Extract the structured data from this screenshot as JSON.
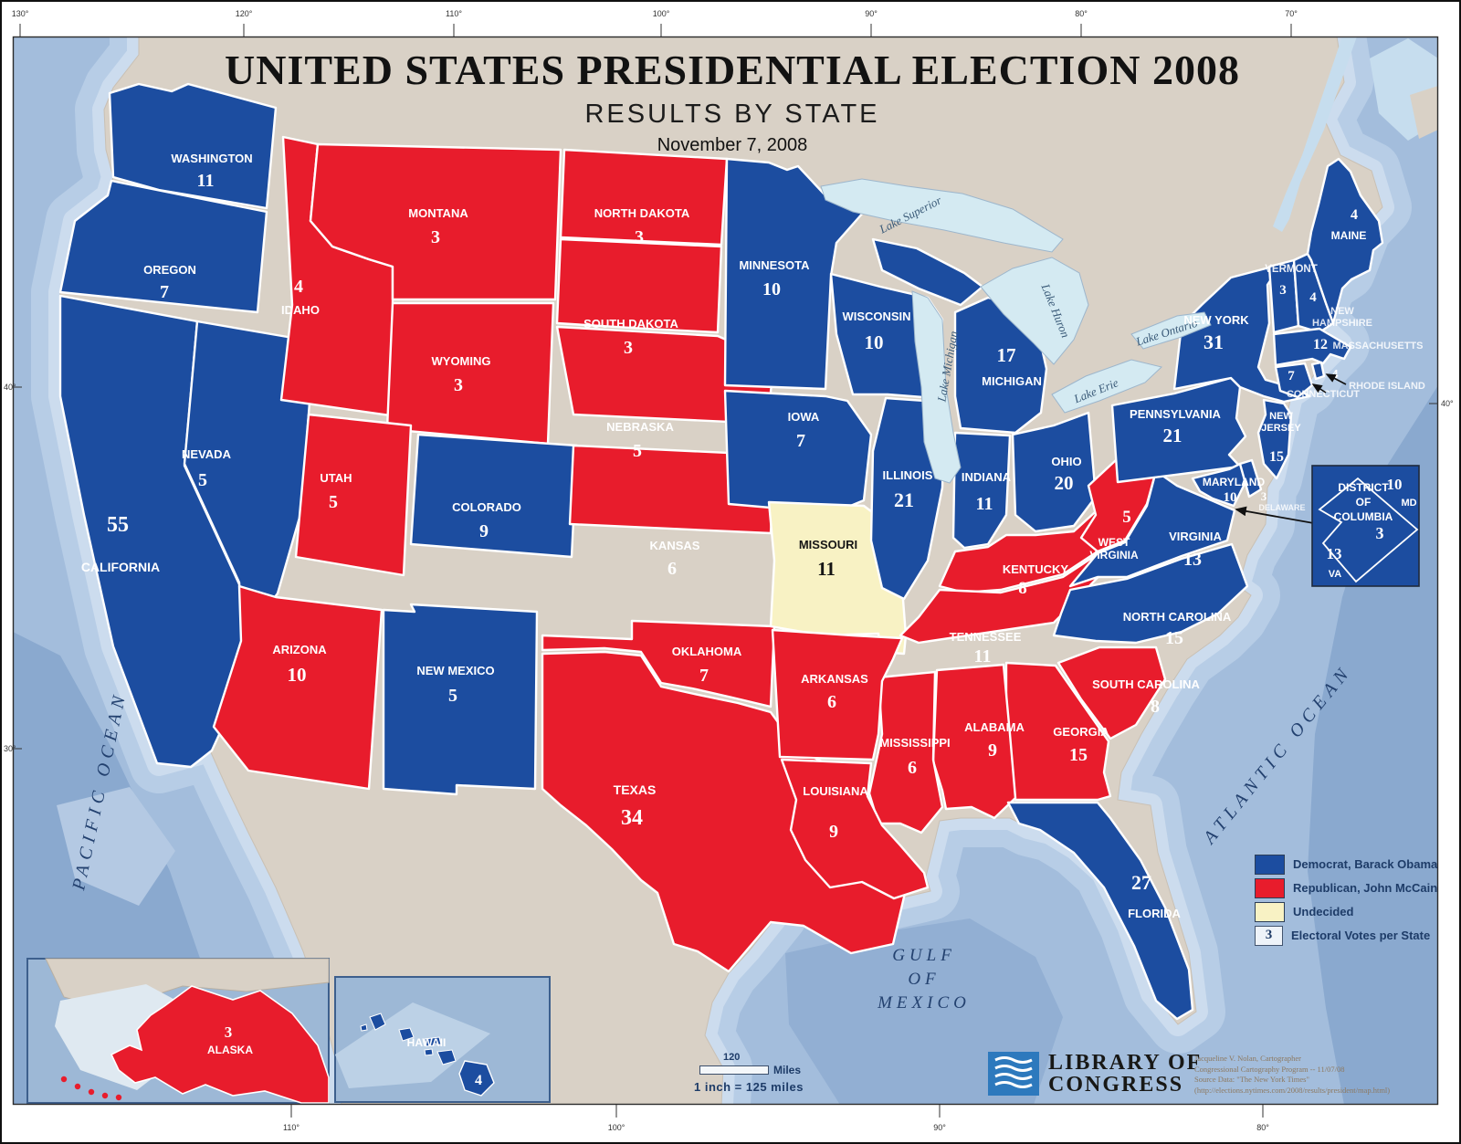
{
  "title": {
    "main": "UNITED STATES PRESIDENTIAL ELECTION 2008",
    "subtitle": "RESULTS BY STATE",
    "date": "November 7, 2008"
  },
  "colors": {
    "dem": "#1c4da0",
    "rep": "#e81c2c",
    "undecided": "#f8f2c4"
  },
  "states": [
    {
      "id": "wa",
      "name": "WASHINGTON",
      "ev": "11",
      "party": "dem"
    },
    {
      "id": "or",
      "name": "OREGON",
      "ev": "7",
      "party": "dem"
    },
    {
      "id": "ca",
      "name": "CALIFORNIA",
      "ev": "55",
      "party": "dem"
    },
    {
      "id": "nv",
      "name": "NEVADA",
      "ev": "5",
      "party": "dem"
    },
    {
      "id": "id",
      "name": "IDAHO",
      "ev": "4",
      "party": "rep"
    },
    {
      "id": "mt",
      "name": "MONTANA",
      "ev": "3",
      "party": "rep"
    },
    {
      "id": "wy",
      "name": "WYOMING",
      "ev": "3",
      "party": "rep"
    },
    {
      "id": "ut",
      "name": "UTAH",
      "ev": "5",
      "party": "rep"
    },
    {
      "id": "co",
      "name": "COLORADO",
      "ev": "9",
      "party": "dem"
    },
    {
      "id": "az",
      "name": "ARIZONA",
      "ev": "10",
      "party": "rep"
    },
    {
      "id": "nm",
      "name": "NEW MEXICO",
      "ev": "5",
      "party": "dem"
    },
    {
      "id": "nd",
      "name": "NORTH DAKOTA",
      "ev": "3",
      "party": "rep"
    },
    {
      "id": "sd",
      "name": "SOUTH DAKOTA",
      "ev": "3",
      "party": "rep"
    },
    {
      "id": "ne",
      "name": "NEBRASKA",
      "ev": "5",
      "party": "rep"
    },
    {
      "id": "ks",
      "name": "KANSAS",
      "ev": "6",
      "party": "rep"
    },
    {
      "id": "ok",
      "name": "OKLAHOMA",
      "ev": "7",
      "party": "rep"
    },
    {
      "id": "tx",
      "name": "TEXAS",
      "ev": "34",
      "party": "rep"
    },
    {
      "id": "mn",
      "name": "MINNESOTA",
      "ev": "10",
      "party": "dem"
    },
    {
      "id": "ia",
      "name": "IOWA",
      "ev": "7",
      "party": "dem"
    },
    {
      "id": "mo",
      "name": "MISSOURI",
      "ev": "11",
      "party": "undecided"
    },
    {
      "id": "wi",
      "name": "WISCONSIN",
      "ev": "10",
      "party": "dem"
    },
    {
      "id": "il",
      "name": "ILLINOIS",
      "ev": "21",
      "party": "dem"
    },
    {
      "id": "mi",
      "name": "MICHIGAN",
      "ev": "17",
      "party": "dem"
    },
    {
      "id": "in",
      "name": "INDIANA",
      "ev": "11",
      "party": "dem"
    },
    {
      "id": "oh",
      "name": "OHIO",
      "ev": "20",
      "party": "dem"
    },
    {
      "id": "ky",
      "name": "KENTUCKY",
      "ev": "8",
      "party": "rep"
    },
    {
      "id": "tn",
      "name": "TENNESSEE",
      "ev": "11",
      "party": "rep"
    },
    {
      "id": "wv",
      "name": "WEST\nVIRGINIA",
      "ev": "5",
      "party": "rep"
    },
    {
      "id": "va",
      "name": "VIRGINIA",
      "ev": "13",
      "party": "dem"
    },
    {
      "id": "nc",
      "name": "NORTH CAROLINA",
      "ev": "15",
      "party": "dem"
    },
    {
      "id": "sc",
      "name": "SOUTH CAROLINA",
      "ev": "8",
      "party": "rep"
    },
    {
      "id": "ga",
      "name": "GEORGIA",
      "ev": "15",
      "party": "rep"
    },
    {
      "id": "al",
      "name": "ALABAMA",
      "ev": "9",
      "party": "rep"
    },
    {
      "id": "ms",
      "name": "MISSISSIPPI",
      "ev": "6",
      "party": "rep"
    },
    {
      "id": "ar",
      "name": "ARKANSAS",
      "ev": "6",
      "party": "rep"
    },
    {
      "id": "la",
      "name": "LOUISIANA",
      "ev": "9",
      "party": "rep"
    },
    {
      "id": "fl",
      "name": "FLORIDA",
      "ev": "27",
      "party": "dem"
    },
    {
      "id": "pa",
      "name": "PENNSYLVANIA",
      "ev": "21",
      "party": "dem"
    },
    {
      "id": "ny",
      "name": "NEW YORK",
      "ev": "31",
      "party": "dem"
    },
    {
      "id": "nj",
      "name": "NEW\nJERSEY",
      "ev": "15",
      "party": "dem"
    },
    {
      "id": "md",
      "name": "MARYLAND",
      "ev": "10",
      "party": "dem"
    },
    {
      "id": "de",
      "name": "DELAWARE",
      "ev": "3",
      "party": "dem"
    },
    {
      "id": "vt",
      "name": "VERMONT",
      "ev": "3",
      "party": "dem"
    },
    {
      "id": "nh",
      "name": "NEW\nHAMPSHIRE",
      "ev": "4",
      "party": "dem"
    },
    {
      "id": "me",
      "name": "MAINE",
      "ev": "4",
      "party": "dem"
    },
    {
      "id": "ma",
      "name": "MASSACHUSETTS",
      "ev": "12",
      "party": "dem"
    },
    {
      "id": "ct",
      "name": "CONNECTICUT",
      "ev": "7",
      "party": "dem"
    },
    {
      "id": "ri",
      "name": "RHODE ISLAND",
      "ev": "4",
      "party": "dem"
    }
  ],
  "insets": {
    "alaska": {
      "name": "ALASKA",
      "ev": "3",
      "party": "rep"
    },
    "hawaii": {
      "name": "HAWAII",
      "ev": "4",
      "party": "dem"
    },
    "dc": {
      "name": "DISTRICT\nOF\nCOLUMBIA",
      "ev": "3",
      "party": "dem",
      "md_num": "10",
      "md_abbr": "MD",
      "va_num": "13",
      "va_abbr": "VA"
    }
  },
  "lakes": [
    "Lake Superior",
    "Lake Michigan",
    "Lake Huron",
    "Lake Erie",
    "Lake Ontario"
  ],
  "oceans": {
    "pacific": "PACIFIC OCEAN",
    "atlantic": "ATLANTIC OCEAN",
    "gulf": "GULF\nOF\nMEXICO"
  },
  "legend": {
    "items": [
      {
        "label": "Democrat, Barack Obama",
        "party": "dem"
      },
      {
        "label": "Republican, John McCain",
        "party": "rep"
      },
      {
        "label": "Undecided",
        "party": "undecided"
      }
    ],
    "ev_box": {
      "value": "3",
      "label": "Electoral Votes per State"
    }
  },
  "scale_bar": {
    "distance": "120",
    "unit": "Miles",
    "ratio": "1 inch = 125 miles"
  },
  "graticule": {
    "top": [
      "130°",
      "120°",
      "110°",
      "100°",
      "90°",
      "80°",
      "70°"
    ],
    "bottom": [
      "110°",
      "100°",
      "90°",
      "80°"
    ],
    "left": [
      "40°",
      "30°"
    ],
    "right": [
      "40°"
    ]
  },
  "logo": {
    "line1": "LIBRARY OF",
    "line2": "CONGRESS"
  },
  "credits": [
    "Jacqueline V. Nolan, Cartographer",
    "Congressional Cartography Program -- 11/07/08",
    "Source Data: \"The New York Times\"",
    "(http://elections.nytimes.com/2008/results/president/map.html)"
  ]
}
